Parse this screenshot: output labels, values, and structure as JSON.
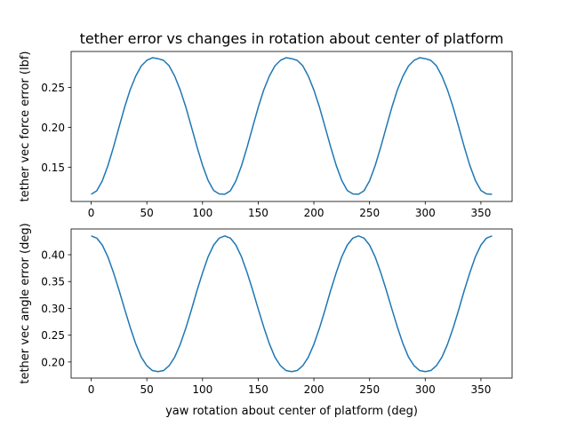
{
  "figure_title": "tether error vs changes in rotation about center of platform",
  "colors": {
    "line": "#1f77b4",
    "axes": "#000000",
    "background": "#ffffff"
  },
  "chart_data": [
    {
      "type": "line",
      "title": "tether error vs changes in rotation about center of platform",
      "xlabel": "",
      "ylabel": "tether vec force error (lbf)",
      "xlim": [
        -18,
        378
      ],
      "ylim": [
        0.107,
        0.295
      ],
      "xticks": [
        0,
        50,
        100,
        150,
        200,
        250,
        300,
        350
      ],
      "yticks": [
        0.15,
        0.2,
        0.25
      ],
      "ytick_labels": [
        "0.15",
        "0.20",
        "0.25"
      ],
      "grid": false,
      "series": [
        {
          "x": [
            0,
            5,
            10,
            15,
            20,
            25,
            30,
            35,
            40,
            45,
            50,
            55,
            60,
            65,
            70,
            75,
            80,
            85,
            90,
            95,
            100,
            105,
            110,
            115,
            120,
            125,
            130,
            135,
            140,
            145,
            150,
            155,
            160,
            165,
            170,
            175,
            180,
            185,
            190,
            195,
            200,
            205,
            210,
            215,
            220,
            225,
            230,
            235,
            240,
            245,
            250,
            255,
            260,
            265,
            270,
            275,
            280,
            285,
            290,
            295,
            300,
            305,
            310,
            315,
            320,
            325,
            330,
            335,
            340,
            345,
            350,
            355,
            360
          ],
          "y": [
            0.116,
            0.1204,
            0.1329,
            0.1518,
            0.1749,
            0.2001,
            0.2249,
            0.2469,
            0.2641,
            0.2769,
            0.2839,
            0.2872,
            0.286,
            0.2839,
            0.2771,
            0.2641,
            0.2467,
            0.2253,
            0.2007,
            0.1756,
            0.1524,
            0.1334,
            0.1208,
            0.1164,
            0.116,
            0.1204,
            0.1329,
            0.1518,
            0.1749,
            0.2001,
            0.2249,
            0.2469,
            0.2641,
            0.2769,
            0.2839,
            0.2872,
            0.286,
            0.2839,
            0.2771,
            0.2641,
            0.2467,
            0.2253,
            0.2007,
            0.1756,
            0.1524,
            0.1334,
            0.1208,
            0.1164,
            0.116,
            0.1204,
            0.1329,
            0.1518,
            0.1749,
            0.2001,
            0.2249,
            0.2469,
            0.2641,
            0.2769,
            0.2839,
            0.2872,
            0.286,
            0.2839,
            0.2771,
            0.2641,
            0.2467,
            0.2253,
            0.2007,
            0.1756,
            0.1524,
            0.1334,
            0.1208,
            0.1164,
            0.116
          ]
        }
      ]
    },
    {
      "type": "line",
      "title": "",
      "xlabel": "yaw rotation about center of platform (deg)",
      "ylabel": "tether vec angle error (deg)",
      "xlim": [
        -18,
        378
      ],
      "ylim": [
        0.17,
        0.448
      ],
      "xticks": [
        0,
        50,
        100,
        150,
        200,
        250,
        300,
        350
      ],
      "yticks": [
        0.2,
        0.25,
        0.3,
        0.35,
        0.4
      ],
      "ytick_labels": [
        "0.20",
        "0.25",
        "0.30",
        "0.35",
        "0.40"
      ],
      "grid": false,
      "series": [
        {
          "x": [
            0,
            5,
            10,
            15,
            20,
            25,
            30,
            35,
            40,
            45,
            50,
            55,
            60,
            65,
            70,
            75,
            80,
            85,
            90,
            95,
            100,
            105,
            110,
            115,
            120,
            125,
            130,
            135,
            140,
            145,
            150,
            155,
            160,
            165,
            170,
            175,
            180,
            185,
            190,
            195,
            200,
            205,
            210,
            215,
            220,
            225,
            230,
            235,
            240,
            245,
            250,
            255,
            260,
            265,
            270,
            275,
            280,
            285,
            290,
            295,
            300,
            305,
            310,
            315,
            320,
            325,
            330,
            335,
            340,
            345,
            350,
            355,
            360
          ],
          "y": [
            0.435,
            0.431,
            0.418,
            0.396,
            0.367,
            0.334,
            0.299,
            0.265,
            0.234,
            0.209,
            0.193,
            0.184,
            0.182,
            0.184,
            0.193,
            0.209,
            0.233,
            0.263,
            0.297,
            0.333,
            0.366,
            0.396,
            0.418,
            0.431,
            0.435,
            0.431,
            0.418,
            0.396,
            0.367,
            0.334,
            0.299,
            0.265,
            0.234,
            0.209,
            0.193,
            0.184,
            0.182,
            0.184,
            0.193,
            0.209,
            0.233,
            0.263,
            0.297,
            0.333,
            0.366,
            0.396,
            0.418,
            0.431,
            0.435,
            0.431,
            0.418,
            0.396,
            0.367,
            0.334,
            0.299,
            0.265,
            0.234,
            0.209,
            0.193,
            0.184,
            0.182,
            0.184,
            0.193,
            0.209,
            0.233,
            0.263,
            0.297,
            0.333,
            0.366,
            0.396,
            0.418,
            0.431,
            0.435
          ]
        }
      ]
    }
  ]
}
